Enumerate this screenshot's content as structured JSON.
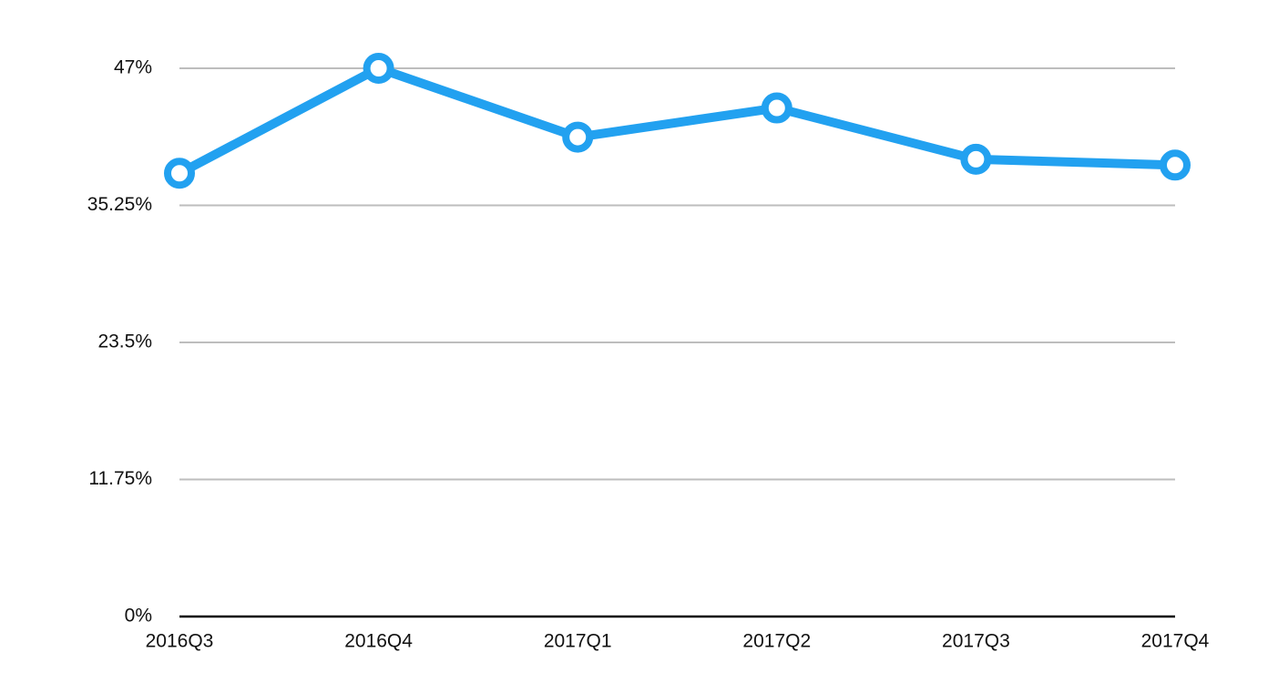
{
  "chart_data": {
    "type": "line",
    "categories": [
      "2016Q3",
      "2016Q4",
      "2017Q1",
      "2017Q2",
      "2017Q3",
      "2017Q4"
    ],
    "series": [
      {
        "color": "#22a1f0",
        "values": [
          38.0,
          47.0,
          41.1,
          43.6,
          39.2,
          38.7
        ]
      }
    ],
    "ylim": [
      0,
      47
    ],
    "yticks": [
      {
        "value": 0,
        "label": "0%"
      },
      {
        "value": 11.75,
        "label": "11.75%"
      },
      {
        "value": 23.5,
        "label": "23.5%"
      },
      {
        "value": 35.25,
        "label": "35.25%"
      },
      {
        "value": 47,
        "label": "47%"
      }
    ],
    "grid": true
  }
}
